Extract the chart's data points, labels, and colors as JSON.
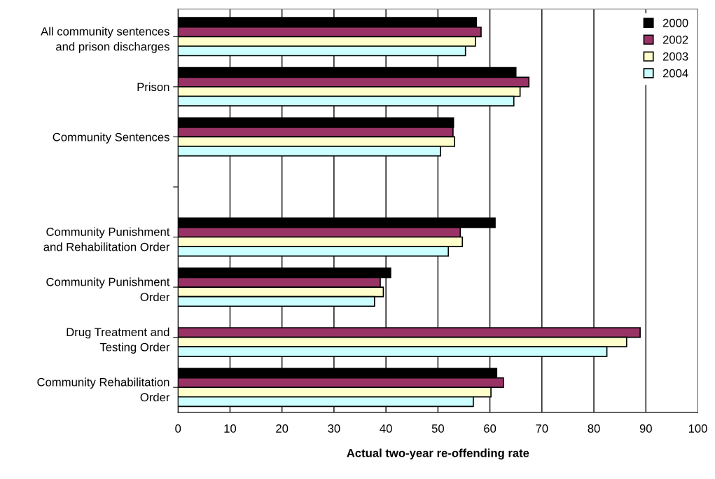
{
  "chart_data": {
    "type": "bar",
    "orientation": "horizontal",
    "xlabel": "Actual two-year re-offending rate",
    "categories": [
      "All community sentences\nand prison discharges",
      "Prison",
      "Community Sentences",
      null,
      "Community Punishment\nand Rehabilitation Order",
      "Community Punishment\nOrder",
      "Drug Treatment and\nTesting Order",
      "Community Rehabilitation\nOrder"
    ],
    "series": [
      {
        "name": "2000",
        "color": "#000000",
        "values": [
          57.4,
          65.0,
          53.0,
          null,
          61.0,
          40.9,
          null,
          61.3
        ]
      },
      {
        "name": "2002",
        "color": "#993366",
        "values": [
          58.3,
          67.5,
          52.9,
          null,
          54.3,
          38.9,
          88.9,
          62.6
        ]
      },
      {
        "name": "2003",
        "color": "#ffffcc",
        "values": [
          57.2,
          65.8,
          53.2,
          null,
          54.7,
          39.5,
          86.3,
          60.2
        ]
      },
      {
        "name": "2004",
        "color": "#ccffff",
        "values": [
          55.3,
          64.6,
          50.5,
          null,
          52.0,
          37.8,
          82.5,
          56.8
        ]
      }
    ],
    "xlim": [
      0,
      100
    ],
    "xticks": [
      0,
      10,
      20,
      30,
      40,
      50,
      60,
      70,
      80,
      90,
      100
    ],
    "grid": "x",
    "legend": "top right"
  }
}
